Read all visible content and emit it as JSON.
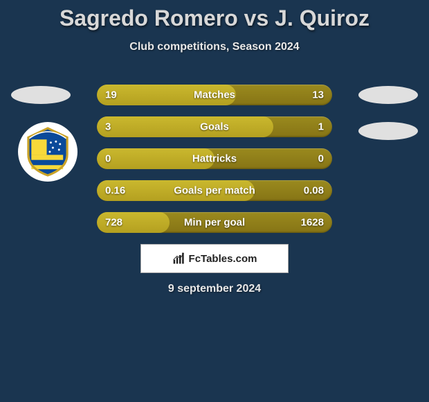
{
  "title": "Sagredo Romero vs J. Quiroz",
  "subtitle": "Club competitions, Season 2024",
  "date": "9 september 2024",
  "attribution": "FcTables.com",
  "colors": {
    "background": "#1a3550",
    "bar_base": "#867415",
    "bar_fill": "#cab82e",
    "text_light": "#e8e8e8",
    "title_color": "#d8d8d8",
    "badge_bg": "#e0e0e0",
    "crest_bg": "#ffffff",
    "attribution_bg": "#ffffff"
  },
  "badges": {
    "left_player": true,
    "right_player": true,
    "right_player2": true,
    "left_club_crest": true
  },
  "stats": [
    {
      "label": "Matches",
      "left_value": "19",
      "right_value": "13",
      "left_pct": 59,
      "right_pct": 41
    },
    {
      "label": "Goals",
      "left_value": "3",
      "right_value": "1",
      "left_pct": 75,
      "right_pct": 25
    },
    {
      "label": "Hattricks",
      "left_value": "0",
      "right_value": "0",
      "left_pct": 50,
      "right_pct": 50
    },
    {
      "label": "Goals per match",
      "left_value": "0.16",
      "right_value": "0.08",
      "left_pct": 67,
      "right_pct": 33
    },
    {
      "label": "Min per goal",
      "left_value": "728",
      "right_value": "1628",
      "left_pct": 31,
      "right_pct": 69
    }
  ]
}
